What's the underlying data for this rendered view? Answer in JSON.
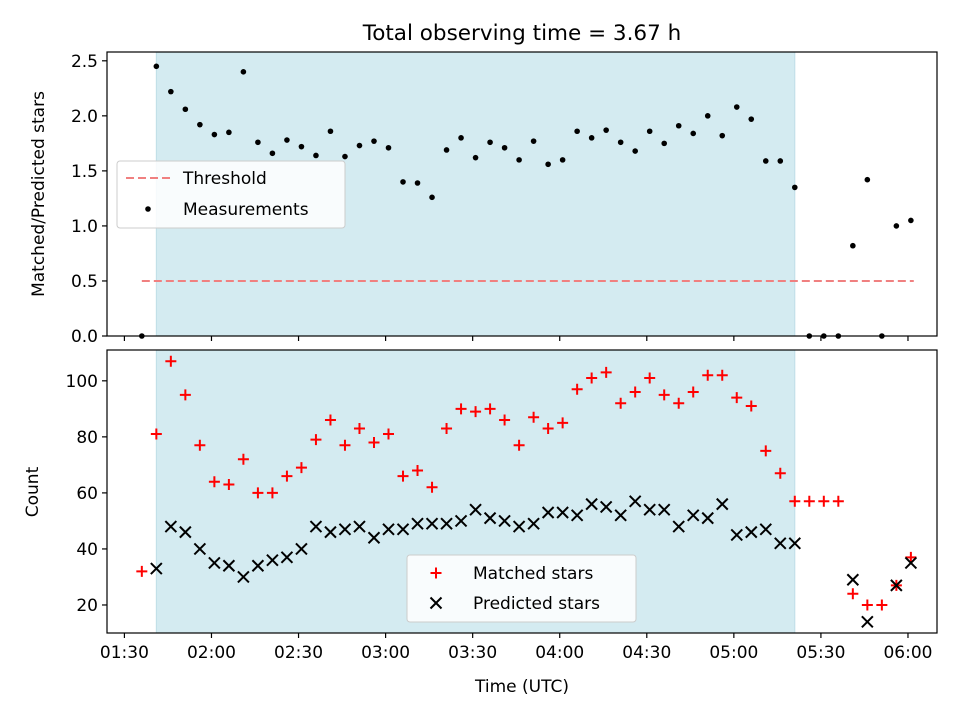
{
  "chart_data": [
    {
      "type": "scatter",
      "title": "Total observing time = 3.67 h",
      "xlabel": "",
      "ylabel": "Matched/Predicted stars",
      "xlim": [
        "01:24",
        "06:10"
      ],
      "ylim": [
        0,
        2.58
      ],
      "grid": false,
      "legend_position": "center-left",
      "x_ticks": [
        "01:30",
        "02:00",
        "02:30",
        "03:00",
        "03:30",
        "04:00",
        "04:30",
        "05:00",
        "05:30",
        "06:00"
      ],
      "y_ticks": [
        "0.0",
        "0.5",
        "1.0",
        "1.5",
        "2.0",
        "2.5"
      ],
      "shaded_span": [
        "01:41",
        "05:21"
      ],
      "shade_color": "#d4ebf1",
      "threshold": {
        "name": "Threshold",
        "value": 0.5,
        "x_range": [
          "01:36",
          "06:02"
        ],
        "color": "#f08080"
      },
      "series": [
        {
          "name": "Measurements",
          "color": "#000000",
          "marker": "dot",
          "points": [
            [
              "01:36",
              0.0
            ],
            [
              "01:41",
              2.45
            ],
            [
              "01:46",
              2.22
            ],
            [
              "01:51",
              2.06
            ],
            [
              "01:56",
              1.92
            ],
            [
              "02:01",
              1.83
            ],
            [
              "02:06",
              1.85
            ],
            [
              "02:11",
              2.4
            ],
            [
              "02:16",
              1.76
            ],
            [
              "02:21",
              1.66
            ],
            [
              "02:26",
              1.78
            ],
            [
              "02:31",
              1.72
            ],
            [
              "02:36",
              1.64
            ],
            [
              "02:41",
              1.86
            ],
            [
              "02:46",
              1.63
            ],
            [
              "02:51",
              1.73
            ],
            [
              "02:56",
              1.77
            ],
            [
              "03:01",
              1.71
            ],
            [
              "03:06",
              1.4
            ],
            [
              "03:11",
              1.39
            ],
            [
              "03:16",
              1.26
            ],
            [
              "03:21",
              1.69
            ],
            [
              "03:26",
              1.8
            ],
            [
              "03:31",
              1.62
            ],
            [
              "03:36",
              1.76
            ],
            [
              "03:41",
              1.71
            ],
            [
              "03:46",
              1.6
            ],
            [
              "03:51",
              1.77
            ],
            [
              "03:56",
              1.56
            ],
            [
              "04:01",
              1.6
            ],
            [
              "04:06",
              1.86
            ],
            [
              "04:11",
              1.8
            ],
            [
              "04:16",
              1.87
            ],
            [
              "04:21",
              1.76
            ],
            [
              "04:26",
              1.68
            ],
            [
              "04:31",
              1.86
            ],
            [
              "04:36",
              1.75
            ],
            [
              "04:41",
              1.91
            ],
            [
              "04:46",
              1.84
            ],
            [
              "04:51",
              2.0
            ],
            [
              "04:56",
              1.82
            ],
            [
              "05:01",
              2.08
            ],
            [
              "05:06",
              1.97
            ],
            [
              "05:11",
              1.59
            ],
            [
              "05:16",
              1.59
            ],
            [
              "05:21",
              1.35
            ],
            [
              "05:26",
              0.0
            ],
            [
              "05:31",
              0.0
            ],
            [
              "05:36",
              0.0
            ],
            [
              "05:41",
              0.82
            ],
            [
              "05:46",
              1.42
            ],
            [
              "05:51",
              0.0
            ],
            [
              "05:56",
              1.0
            ],
            [
              "06:01",
              1.05
            ]
          ]
        }
      ]
    },
    {
      "type": "scatter",
      "title": "",
      "xlabel": "Time (UTC)",
      "ylabel": "Count",
      "xlim": [
        "01:24",
        "06:10"
      ],
      "ylim": [
        10,
        111
      ],
      "grid": false,
      "legend_position": "bottom-center",
      "x_ticks": [
        "01:30",
        "02:00",
        "02:30",
        "03:00",
        "03:30",
        "04:00",
        "04:30",
        "05:00",
        "05:30",
        "06:00"
      ],
      "y_ticks": [
        "20",
        "40",
        "60",
        "80",
        "100"
      ],
      "shaded_span": [
        "01:41",
        "05:21"
      ],
      "shade_color": "#d4ebf1",
      "series": [
        {
          "name": "Matched stars",
          "color": "#ff0000",
          "marker": "plus",
          "points": [
            [
              "01:36",
              32
            ],
            [
              "01:41",
              81
            ],
            [
              "01:46",
              107
            ],
            [
              "01:51",
              95
            ],
            [
              "01:56",
              77
            ],
            [
              "02:01",
              64
            ],
            [
              "02:06",
              63
            ],
            [
              "02:11",
              72
            ],
            [
              "02:16",
              60
            ],
            [
              "02:21",
              60
            ],
            [
              "02:26",
              66
            ],
            [
              "02:31",
              69
            ],
            [
              "02:36",
              79
            ],
            [
              "02:41",
              86
            ],
            [
              "02:46",
              77
            ],
            [
              "02:51",
              83
            ],
            [
              "02:56",
              78
            ],
            [
              "03:01",
              81
            ],
            [
              "03:06",
              66
            ],
            [
              "03:11",
              68
            ],
            [
              "03:16",
              62
            ],
            [
              "03:21",
              83
            ],
            [
              "03:26",
              90
            ],
            [
              "03:31",
              89
            ],
            [
              "03:36",
              90
            ],
            [
              "03:41",
              86
            ],
            [
              "03:46",
              77
            ],
            [
              "03:51",
              87
            ],
            [
              "03:56",
              83
            ],
            [
              "04:01",
              85
            ],
            [
              "04:06",
              97
            ],
            [
              "04:11",
              101
            ],
            [
              "04:16",
              103
            ],
            [
              "04:21",
              92
            ],
            [
              "04:26",
              96
            ],
            [
              "04:31",
              101
            ],
            [
              "04:36",
              95
            ],
            [
              "04:41",
              92
            ],
            [
              "04:46",
              96
            ],
            [
              "04:51",
              102
            ],
            [
              "04:56",
              102
            ],
            [
              "05:01",
              94
            ],
            [
              "05:06",
              91
            ],
            [
              "05:11",
              75
            ],
            [
              "05:16",
              67
            ],
            [
              "05:21",
              57
            ],
            [
              "05:26",
              57
            ],
            [
              "05:31",
              57
            ],
            [
              "05:36",
              57
            ],
            [
              "05:41",
              24
            ],
            [
              "05:46",
              20
            ],
            [
              "05:51",
              20
            ],
            [
              "05:56",
              27
            ],
            [
              "06:01",
              37
            ]
          ]
        },
        {
          "name": "Predicted stars",
          "color": "#000000",
          "marker": "x",
          "points": [
            [
              "01:41",
              33
            ],
            [
              "01:46",
              48
            ],
            [
              "01:51",
              46
            ],
            [
              "01:56",
              40
            ],
            [
              "02:01",
              35
            ],
            [
              "02:06",
              34
            ],
            [
              "02:11",
              30
            ],
            [
              "02:16",
              34
            ],
            [
              "02:21",
              36
            ],
            [
              "02:26",
              37
            ],
            [
              "02:31",
              40
            ],
            [
              "02:36",
              48
            ],
            [
              "02:41",
              46
            ],
            [
              "02:46",
              47
            ],
            [
              "02:51",
              48
            ],
            [
              "02:56",
              44
            ],
            [
              "03:01",
              47
            ],
            [
              "03:06",
              47
            ],
            [
              "03:11",
              49
            ],
            [
              "03:16",
              49
            ],
            [
              "03:21",
              49
            ],
            [
              "03:26",
              50
            ],
            [
              "03:31",
              54
            ],
            [
              "03:36",
              51
            ],
            [
              "03:41",
              50
            ],
            [
              "03:46",
              48
            ],
            [
              "03:51",
              49
            ],
            [
              "03:56",
              53
            ],
            [
              "04:01",
              53
            ],
            [
              "04:06",
              52
            ],
            [
              "04:11",
              56
            ],
            [
              "04:16",
              55
            ],
            [
              "04:21",
              52
            ],
            [
              "04:26",
              57
            ],
            [
              "04:31",
              54
            ],
            [
              "04:36",
              54
            ],
            [
              "04:41",
              48
            ],
            [
              "04:46",
              52
            ],
            [
              "04:51",
              51
            ],
            [
              "04:56",
              56
            ],
            [
              "05:01",
              45
            ],
            [
              "05:06",
              46
            ],
            [
              "05:11",
              47
            ],
            [
              "05:16",
              42
            ],
            [
              "05:21",
              42
            ],
            [
              "05:41",
              29
            ],
            [
              "05:46",
              14
            ],
            [
              "05:56",
              27
            ],
            [
              "06:01",
              35
            ]
          ]
        }
      ]
    }
  ]
}
